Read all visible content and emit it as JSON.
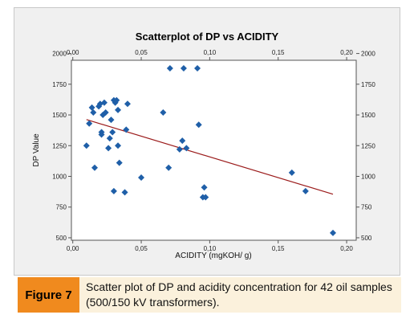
{
  "chart_data": {
    "type": "scatter",
    "title": "Scatterplot of DP vs ACIDITY",
    "xlabel": "ACIDITY (mgKOH/ g)",
    "ylabel": "DP Value",
    "xlim": [
      -0.001,
      0.207
    ],
    "ylim": [
      480,
      1945
    ],
    "xticks": [
      "0,00",
      "0,05",
      "0,10",
      "0,15",
      "0,20"
    ],
    "xtick_values": [
      0,
      0.05,
      0.1,
      0.15,
      0.2
    ],
    "yticks": [
      "500",
      "750",
      "1000",
      "1250",
      "1500",
      "1750",
      "2000"
    ],
    "ytick_values": [
      500,
      750,
      1000,
      1250,
      1500,
      1750,
      2000
    ],
    "grid": false,
    "marker": "diamond",
    "marker_color": "#1f5fa8",
    "fit_line": {
      "color": "#9b1b1b",
      "x": [
        0.01,
        0.19
      ],
      "y": [
        1462,
        855
      ]
    },
    "points": [
      {
        "x": 0.01,
        "y": 1250
      },
      {
        "x": 0.012,
        "y": 1430
      },
      {
        "x": 0.014,
        "y": 1560
      },
      {
        "x": 0.015,
        "y": 1520
      },
      {
        "x": 0.016,
        "y": 1070
      },
      {
        "x": 0.019,
        "y": 1570
      },
      {
        "x": 0.02,
        "y": 1590
      },
      {
        "x": 0.021,
        "y": 1360
      },
      {
        "x": 0.021,
        "y": 1340
      },
      {
        "x": 0.022,
        "y": 1500
      },
      {
        "x": 0.023,
        "y": 1600
      },
      {
        "x": 0.024,
        "y": 1520
      },
      {
        "x": 0.026,
        "y": 1230
      },
      {
        "x": 0.027,
        "y": 1310
      },
      {
        "x": 0.028,
        "y": 1460
      },
      {
        "x": 0.029,
        "y": 1360
      },
      {
        "x": 0.03,
        "y": 1620
      },
      {
        "x": 0.03,
        "y": 880
      },
      {
        "x": 0.031,
        "y": 1600
      },
      {
        "x": 0.032,
        "y": 1620
      },
      {
        "x": 0.033,
        "y": 1540
      },
      {
        "x": 0.033,
        "y": 1250
      },
      {
        "x": 0.034,
        "y": 1110
      },
      {
        "x": 0.038,
        "y": 870
      },
      {
        "x": 0.039,
        "y": 1380
      },
      {
        "x": 0.04,
        "y": 1590
      },
      {
        "x": 0.05,
        "y": 990
      },
      {
        "x": 0.066,
        "y": 1520
      },
      {
        "x": 0.07,
        "y": 1070
      },
      {
        "x": 0.071,
        "y": 1880
      },
      {
        "x": 0.078,
        "y": 1220
      },
      {
        "x": 0.08,
        "y": 1290
      },
      {
        "x": 0.081,
        "y": 1880
      },
      {
        "x": 0.083,
        "y": 1230
      },
      {
        "x": 0.091,
        "y": 1880
      },
      {
        "x": 0.092,
        "y": 1420
      },
      {
        "x": 0.095,
        "y": 830
      },
      {
        "x": 0.096,
        "y": 910
      },
      {
        "x": 0.097,
        "y": 830
      },
      {
        "x": 0.16,
        "y": 1030
      },
      {
        "x": 0.17,
        "y": 880
      },
      {
        "x": 0.19,
        "y": 540
      }
    ]
  },
  "caption": {
    "label": "Figure 7",
    "text": "Scatter plot of DP and acidity concentration for 42 oil samples (500/150 kV transformers)."
  },
  "colors": {
    "caption_label_bg": "#f08a1e",
    "caption_bg": "#fbf1dc",
    "panel_bg": "#f0f0f0",
    "plot_bg": "#ffffff"
  }
}
